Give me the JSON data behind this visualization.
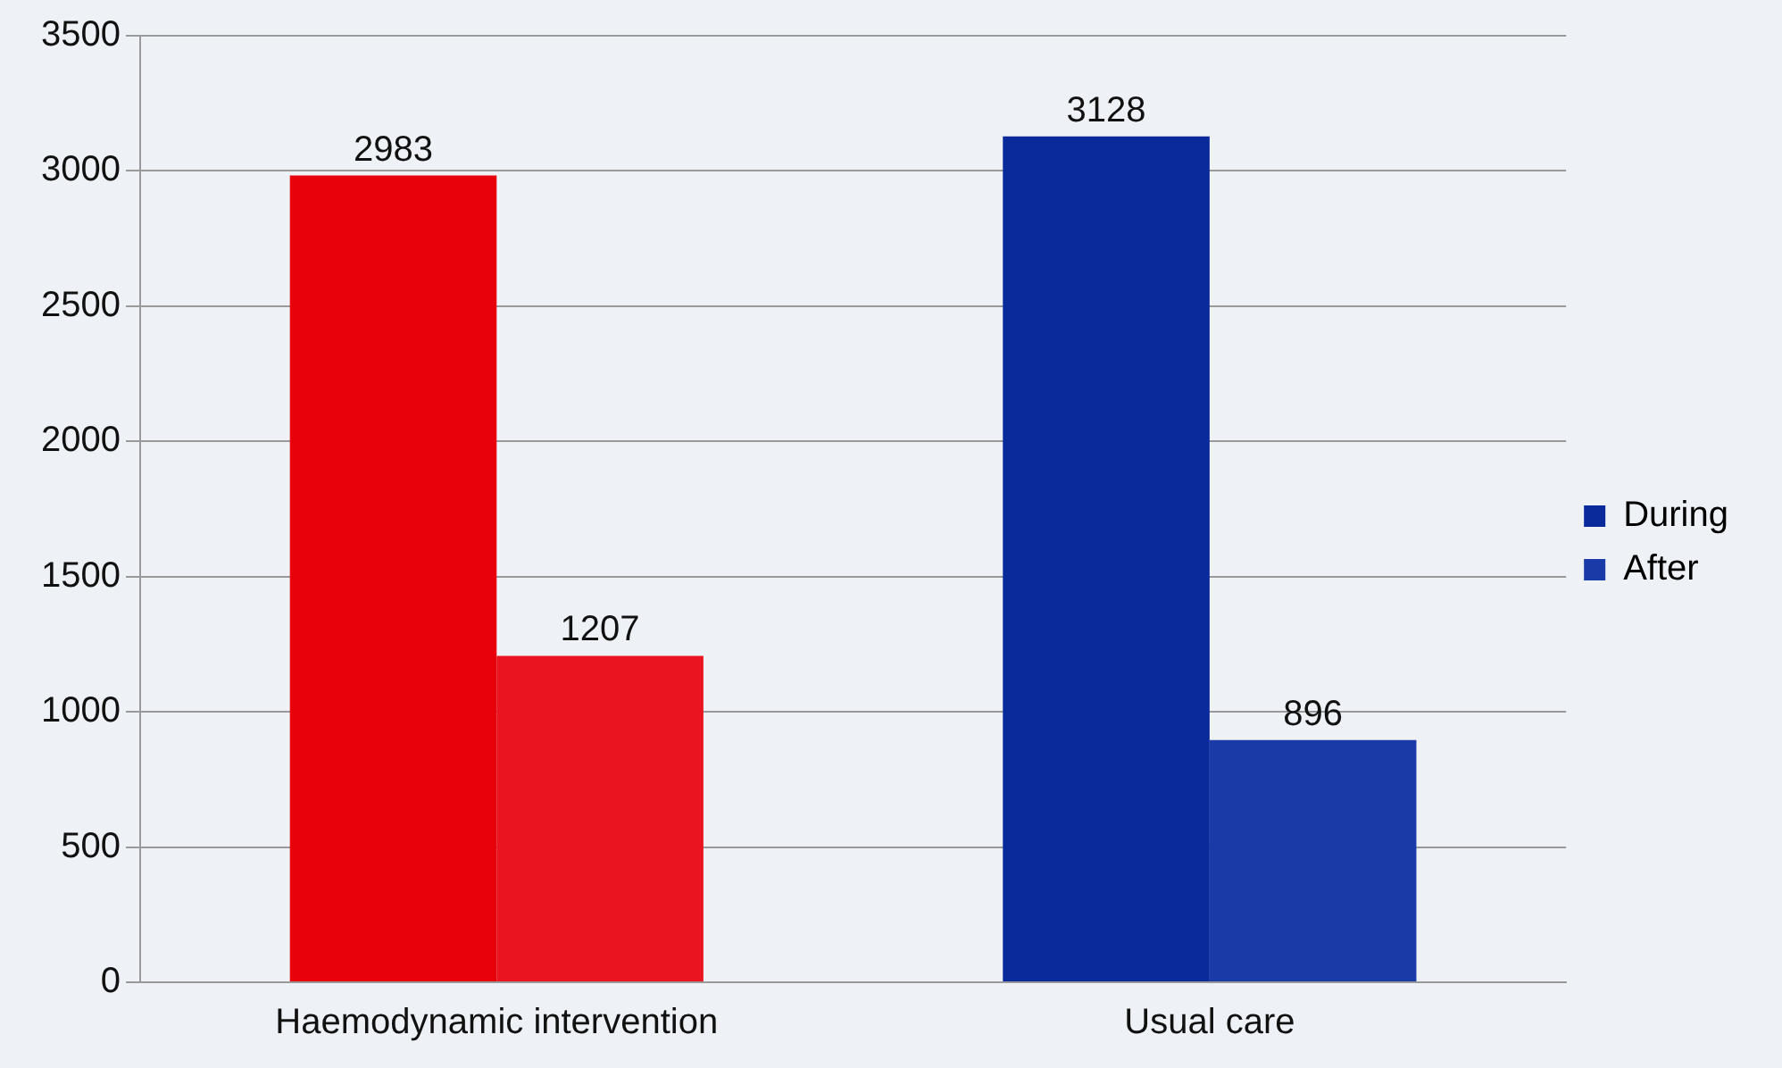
{
  "chart_data": {
    "type": "bar",
    "categories": [
      "Haemodynamic intervention",
      "Usual care"
    ],
    "series": [
      {
        "name": "During",
        "color": "#0a2a9c",
        "colors": [
          "#e8000a",
          "#0a2a9c"
        ],
        "values": [
          2983,
          3128
        ]
      },
      {
        "name": "After",
        "color": "#1a3aa8",
        "colors": [
          "#ea1420",
          "#1a3aa8"
        ],
        "values": [
          1207,
          896
        ]
      }
    ],
    "ylim": [
      0,
      3500
    ],
    "yticks": [
      0,
      500,
      1000,
      1500,
      2000,
      2500,
      3000,
      3500
    ],
    "grid": "y",
    "legend": "right",
    "data_labels": true
  }
}
